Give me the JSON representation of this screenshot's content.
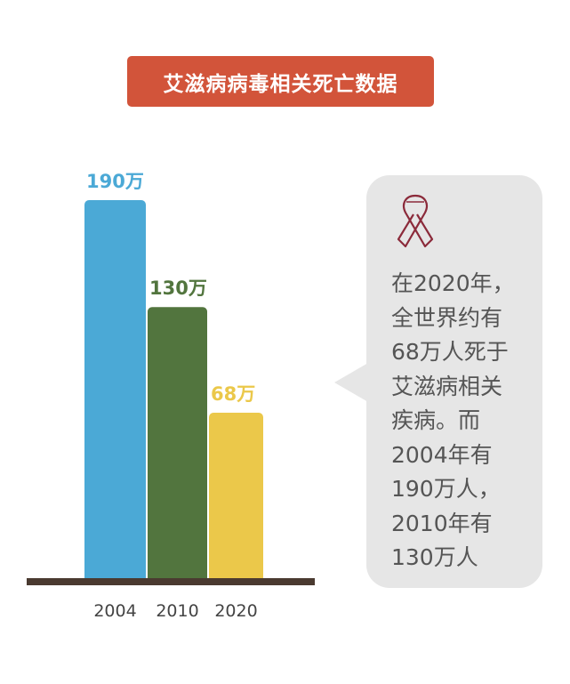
{
  "chart_data": {
    "type": "bar",
    "title": "艾滋病病毒相关死亡数据",
    "categories": [
      "2004",
      "2010",
      "2020"
    ],
    "values": [
      190,
      130,
      68
    ],
    "data_labels": [
      "190万",
      "130万",
      "68万"
    ],
    "colors": [
      "#4ba9d6",
      "#52753e",
      "#ebc84a"
    ],
    "unit": "万",
    "ylim": [
      0,
      190
    ],
    "grid": false,
    "axis_color": "#4a3a30"
  },
  "callout": {
    "icon": "awareness-ribbon-icon",
    "icon_color": "#8b2a3a",
    "lines": [
      "在2020年，",
      "全世界约有",
      "68万人死于",
      "艾滋病相关",
      "疾病。而",
      "2004年有",
      "190万人，",
      "2010年有",
      "130万人"
    ]
  }
}
